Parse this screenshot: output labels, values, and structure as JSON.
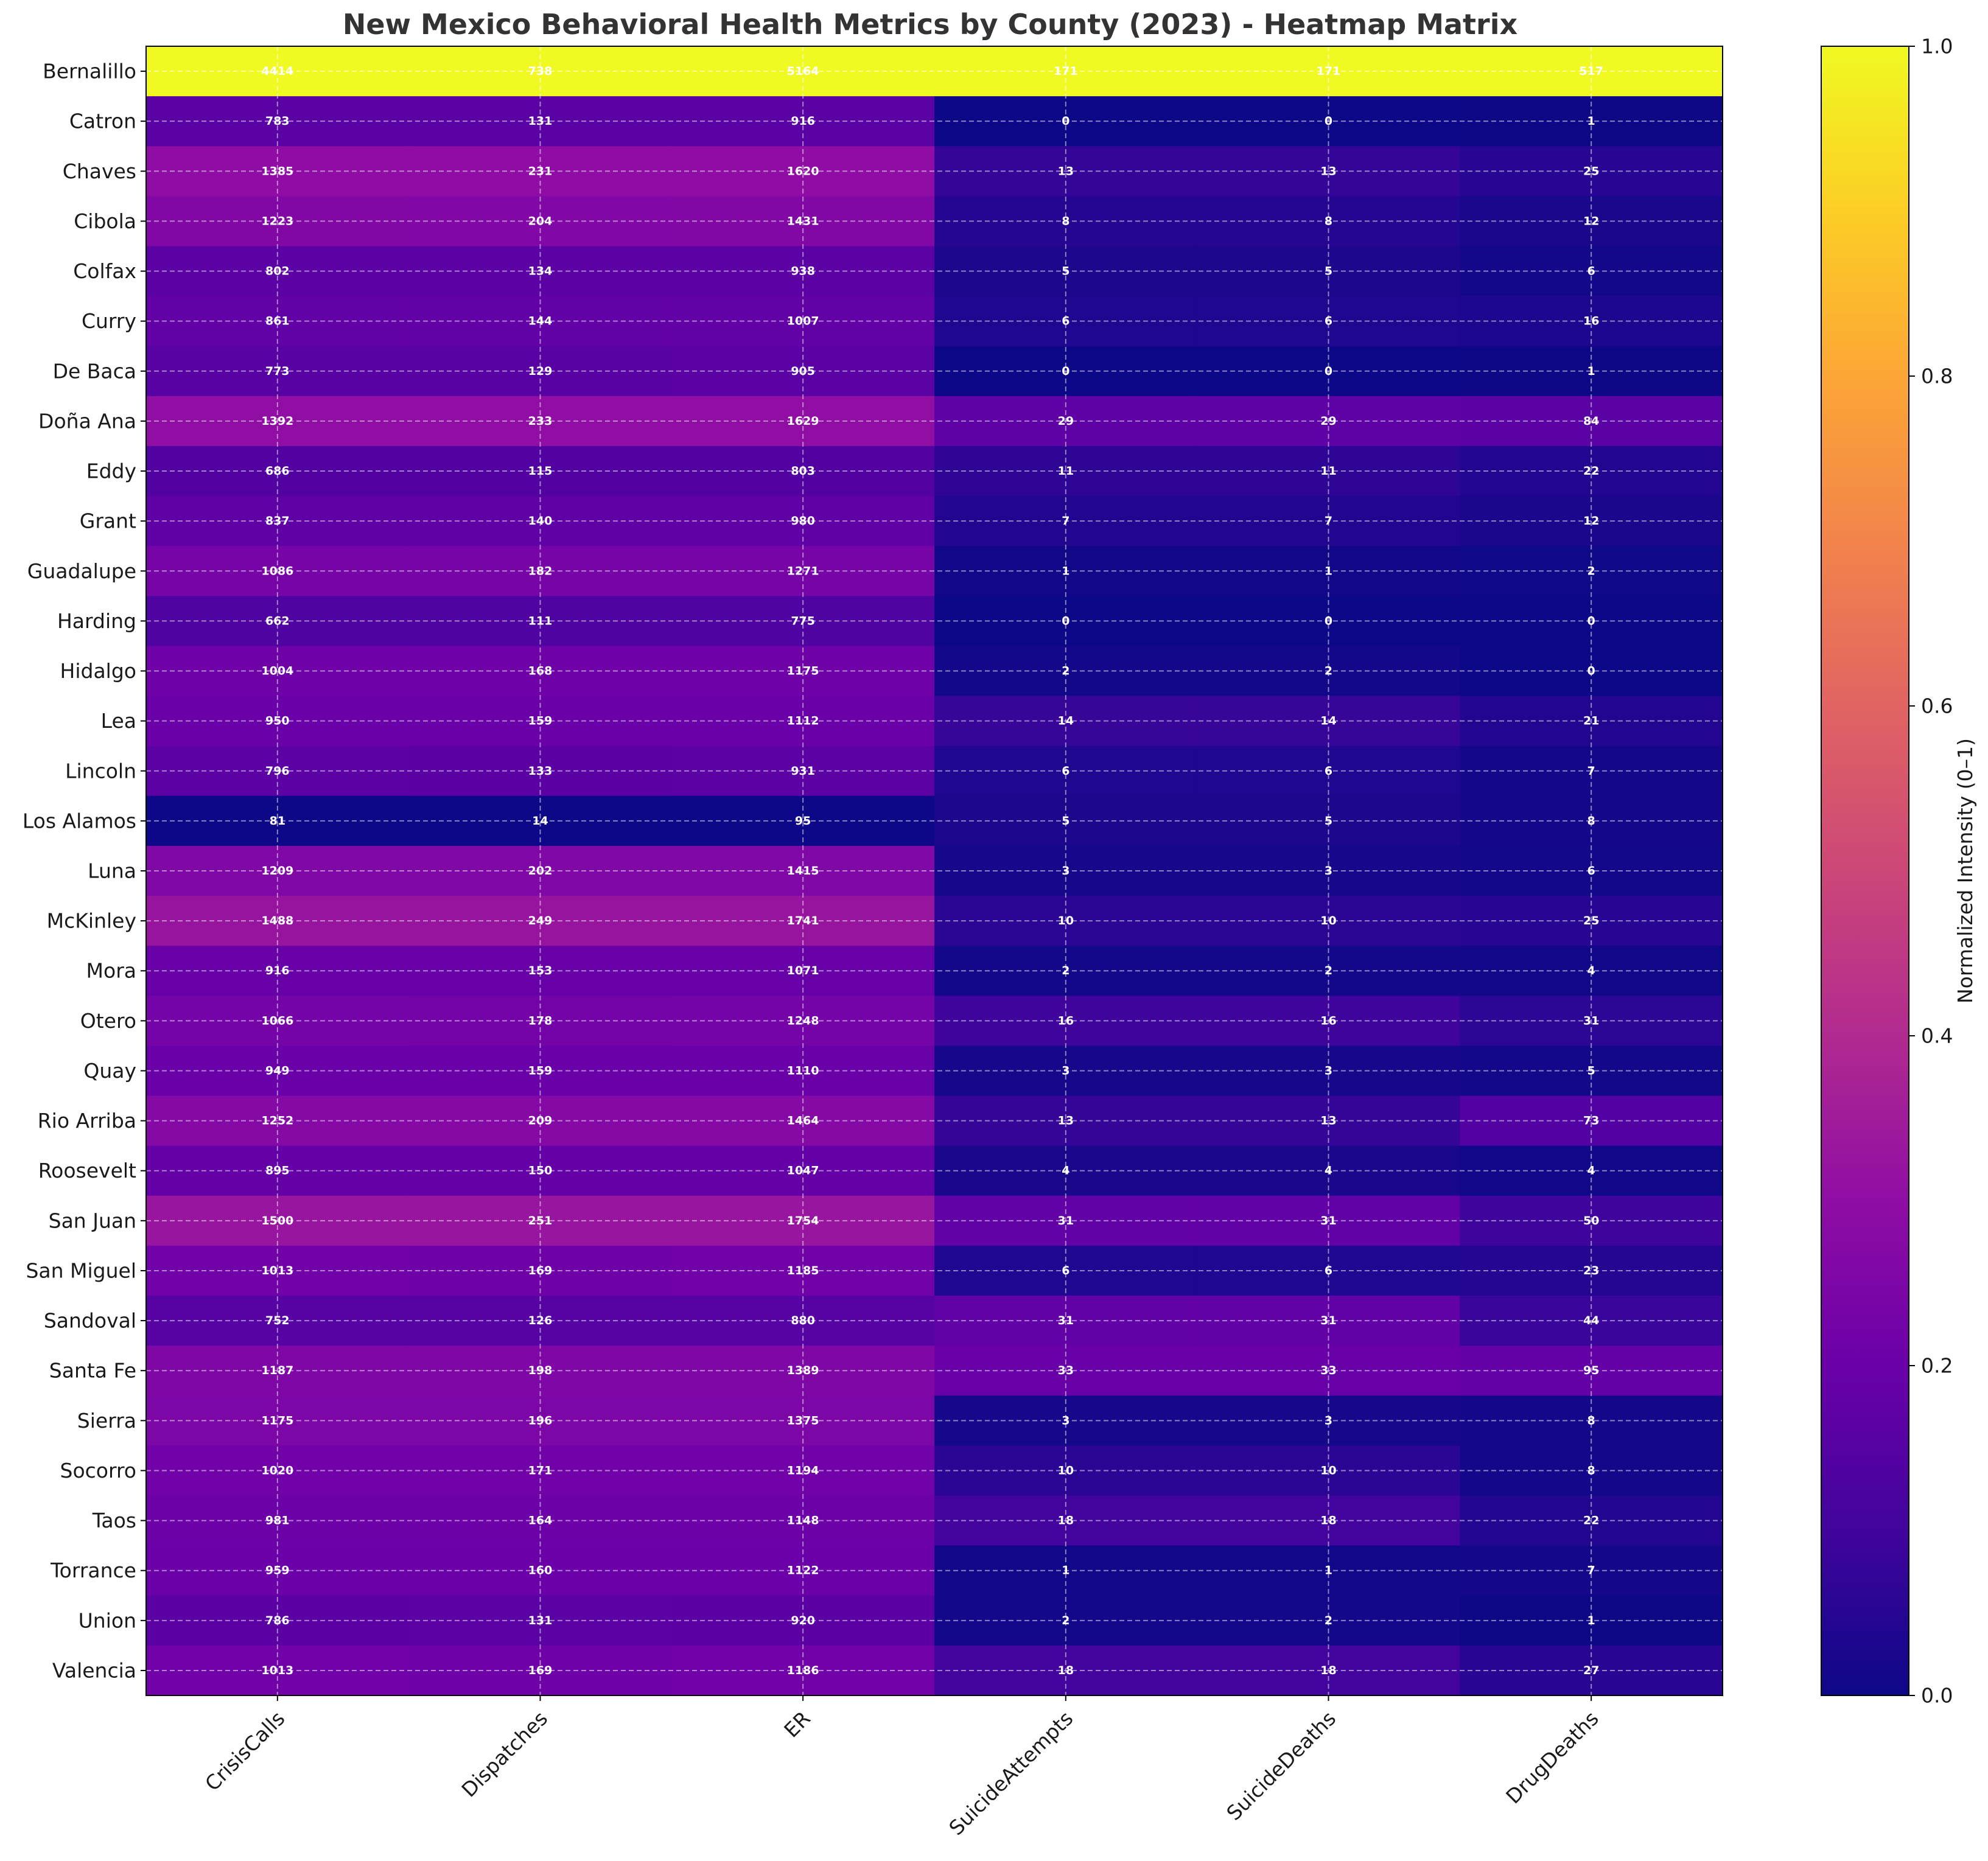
{
  "chart_data": {
    "type": "heatmap",
    "title": "New Mexico Behavioral Health Metrics by County (2023) - Heatmap Matrix",
    "columns": [
      "CrisisCalls",
      "Dispatches",
      "ER",
      "SuicideAttempts",
      "SuicideDeaths",
      "DrugDeaths"
    ],
    "rows": [
      "Bernalillo",
      "Catron",
      "Chaves",
      "Cibola",
      "Colfax",
      "Curry",
      "De Baca",
      "Doña Ana",
      "Eddy",
      "Grant",
      "Guadalupe",
      "Harding",
      "Hidalgo",
      "Lea",
      "Lincoln",
      "Los Alamos",
      "Luna",
      "McKinley",
      "Mora",
      "Otero",
      "Quay",
      "Rio Arriba",
      "Roosevelt",
      "San Juan",
      "San Miguel",
      "Sandoval",
      "Santa Fe",
      "Sierra",
      "Socorro",
      "Taos",
      "Torrance",
      "Union",
      "Valencia"
    ],
    "values": [
      [
        4414,
        738,
        5164,
        171,
        171,
        517
      ],
      [
        783,
        131,
        916,
        0,
        0,
        1
      ],
      [
        1385,
        231,
        1620,
        13,
        13,
        25
      ],
      [
        1223,
        204,
        1431,
        8,
        8,
        12
      ],
      [
        802,
        134,
        938,
        5,
        5,
        6
      ],
      [
        861,
        144,
        1007,
        6,
        6,
        16
      ],
      [
        773,
        129,
        905,
        0,
        0,
        1
      ],
      [
        1392,
        233,
        1629,
        29,
        29,
        84
      ],
      [
        686,
        115,
        803,
        11,
        11,
        22
      ],
      [
        837,
        140,
        980,
        7,
        7,
        12
      ],
      [
        1086,
        182,
        1271,
        1,
        1,
        2
      ],
      [
        662,
        111,
        775,
        0,
        0,
        0
      ],
      [
        1004,
        168,
        1175,
        2,
        2,
        0
      ],
      [
        950,
        159,
        1112,
        14,
        14,
        21
      ],
      [
        796,
        133,
        931,
        6,
        6,
        7
      ],
      [
        81,
        14,
        95,
        5,
        5,
        8
      ],
      [
        1209,
        202,
        1415,
        3,
        3,
        6
      ],
      [
        1488,
        249,
        1741,
        10,
        10,
        25
      ],
      [
        916,
        153,
        1071,
        2,
        2,
        4
      ],
      [
        1066,
        178,
        1248,
        16,
        16,
        31
      ],
      [
        949,
        159,
        1110,
        3,
        3,
        5
      ],
      [
        1252,
        209,
        1464,
        13,
        13,
        73
      ],
      [
        895,
        150,
        1047,
        4,
        4,
        4
      ],
      [
        1500,
        251,
        1754,
        31,
        31,
        50
      ],
      [
        1013,
        169,
        1185,
        6,
        6,
        23
      ],
      [
        752,
        126,
        880,
        31,
        31,
        44
      ],
      [
        1187,
        198,
        1389,
        33,
        33,
        95
      ],
      [
        1175,
        196,
        1375,
        3,
        3,
        8
      ],
      [
        1020,
        171,
        1194,
        10,
        10,
        8
      ],
      [
        981,
        164,
        1148,
        18,
        18,
        22
      ],
      [
        959,
        160,
        1122,
        1,
        1,
        7
      ],
      [
        786,
        131,
        920,
        2,
        2,
        1
      ],
      [
        1013,
        169,
        1186,
        18,
        18,
        27
      ]
    ],
    "colormap": "plasma",
    "normalization": "per-column",
    "grid": true,
    "colorbar": {
      "label": "Normalized Intensity (0–1)",
      "range": [
        0,
        1
      ],
      "ticks": [
        "0.0",
        "0.2",
        "0.4",
        "0.6",
        "0.8",
        "1.0"
      ]
    }
  }
}
